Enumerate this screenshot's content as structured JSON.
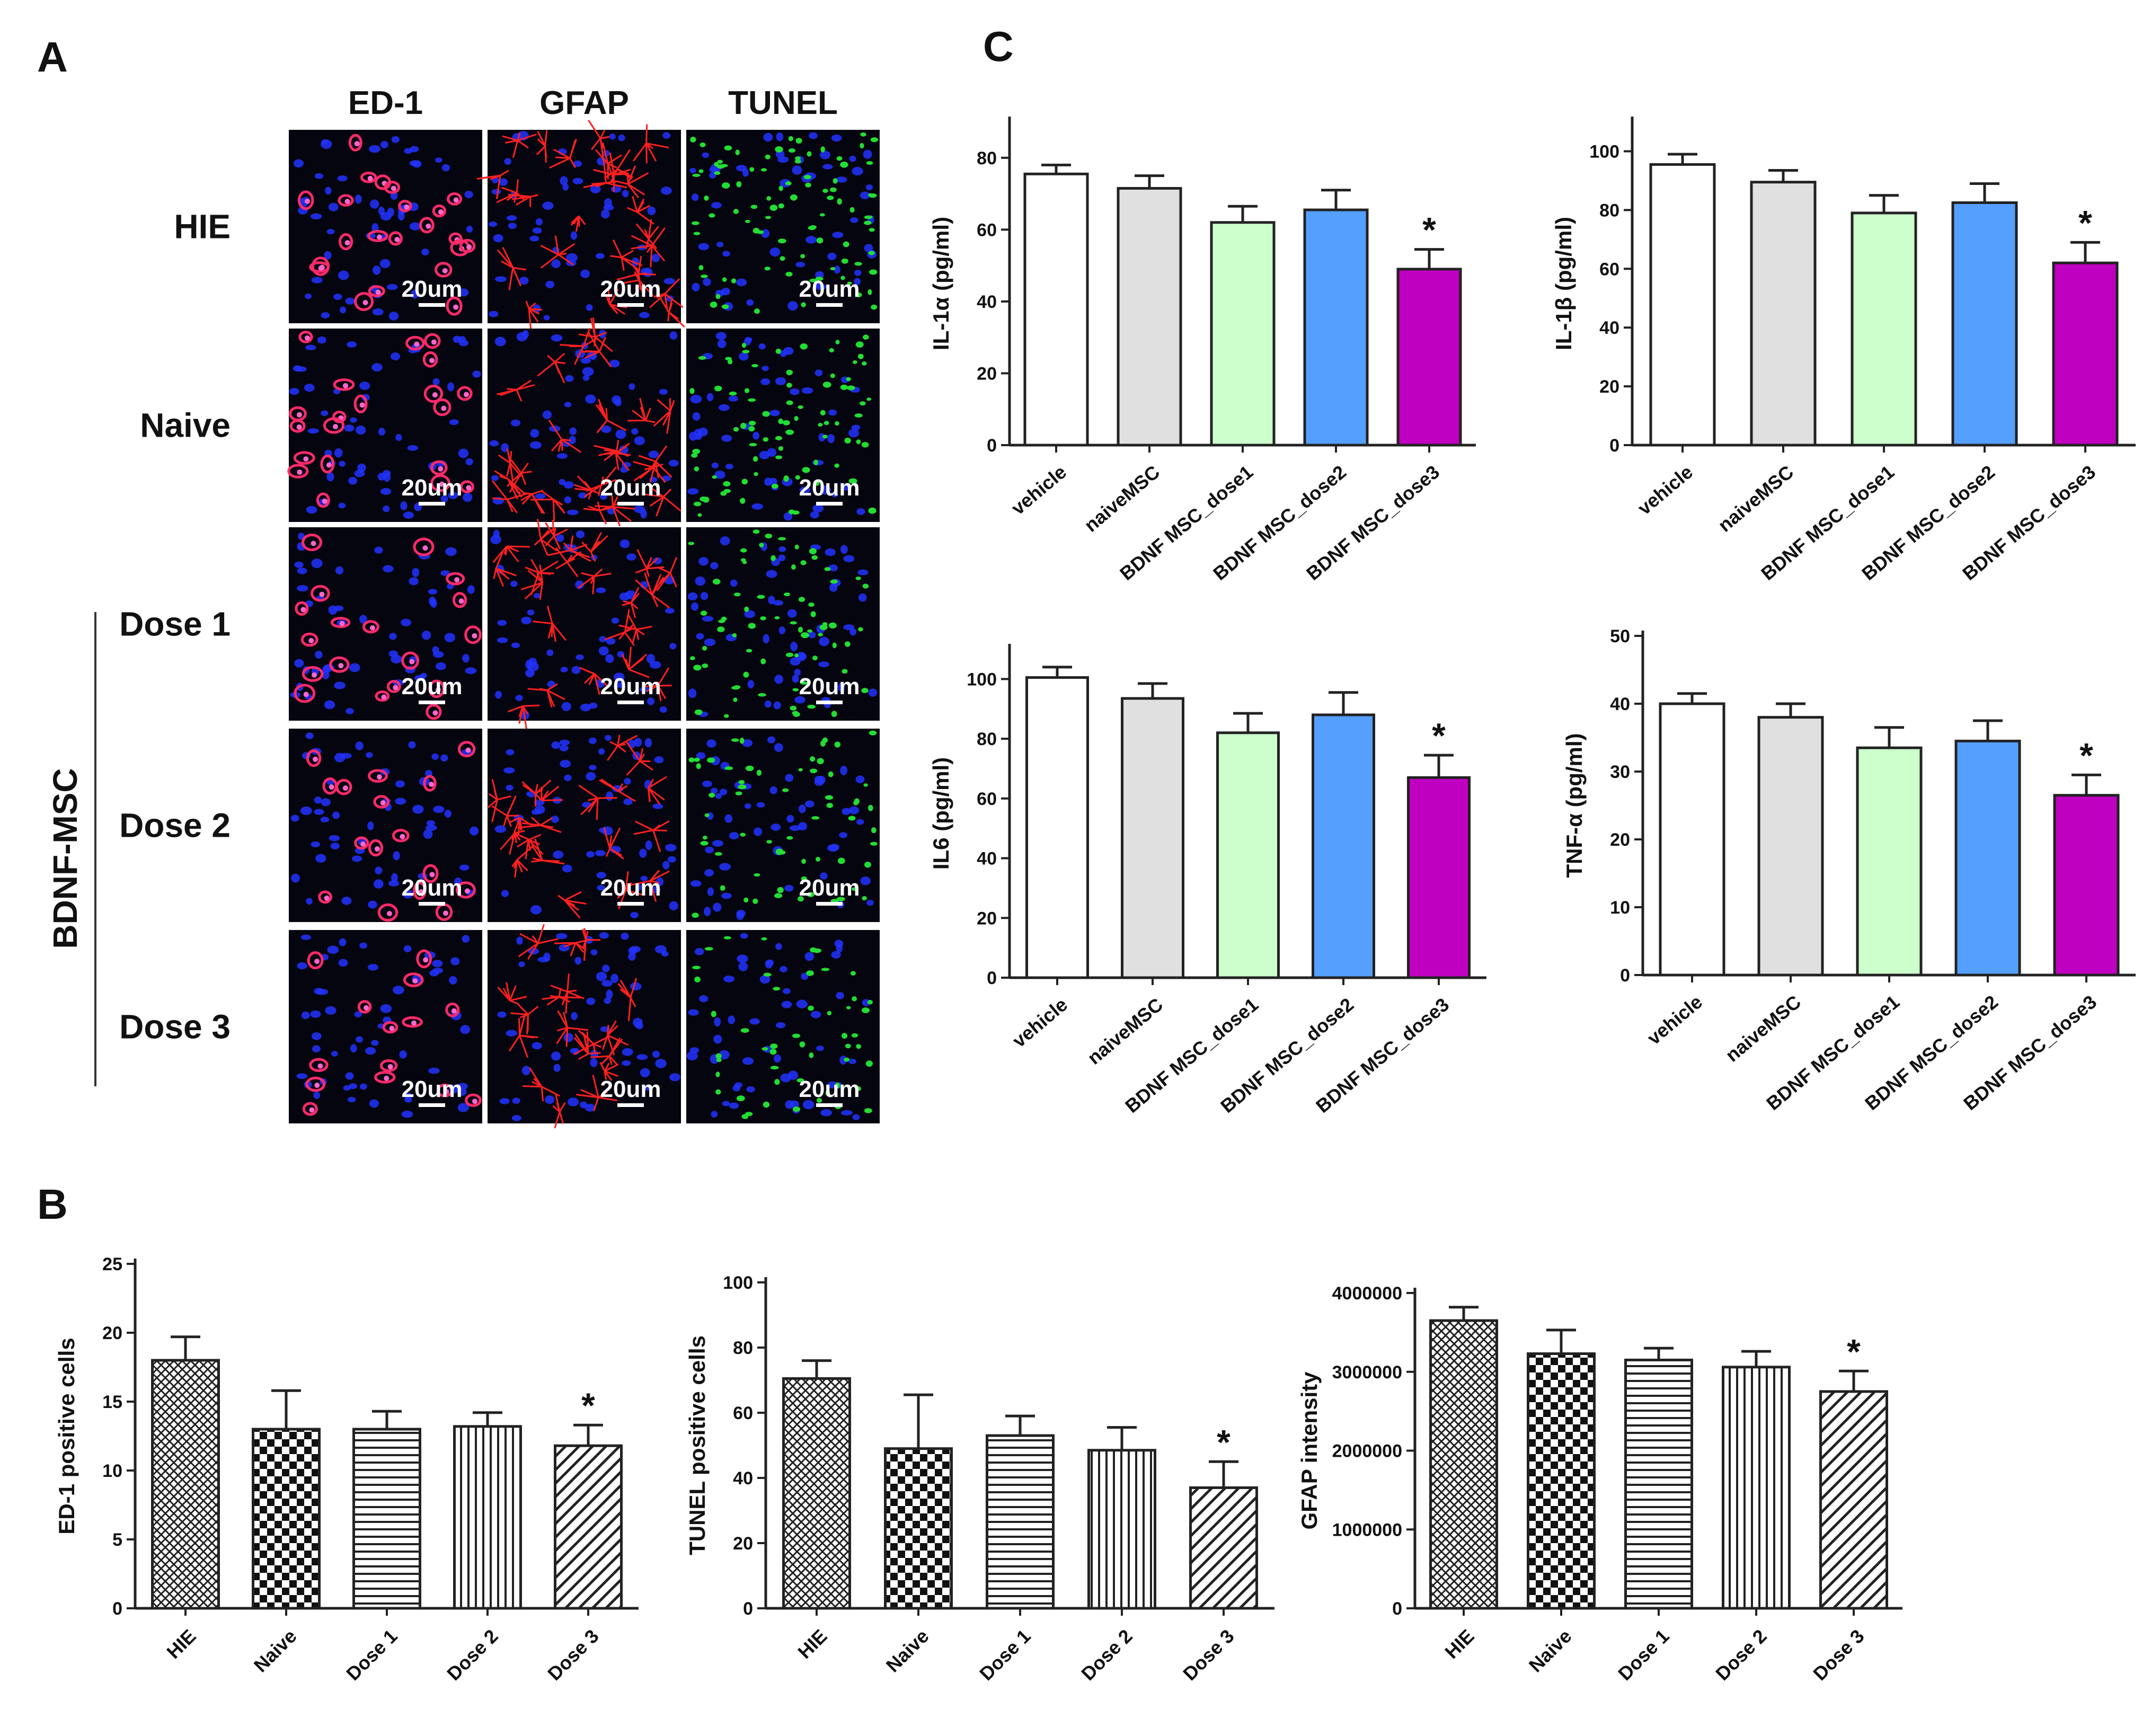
{
  "panel_labels": {
    "a": "A",
    "b": "B",
    "c": "C"
  },
  "micrograph": {
    "columns": [
      "ED-1",
      "GFAP",
      "TUNEL"
    ],
    "rows": [
      "HIE",
      "Naive",
      "Dose 1",
      "Dose 2",
      "Dose 3"
    ],
    "group_label": "BDNF-MSC",
    "scale_bar": "20um",
    "colors": {
      "nuclei": "#2233ff",
      "ed1": "#ff2a6a",
      "gfap": "#ff2020",
      "tunel": "#22dd33",
      "background": "#050510"
    }
  },
  "chart_data": [
    {
      "type": "bar",
      "panel": "C",
      "categories": [
        "vehicle",
        "naiveMSC",
        "BDNF MSC_dose1",
        "BDNF MSC_dose2",
        "BDNF MSC_dose3"
      ],
      "values": [
        75.5,
        71.5,
        62,
        65.5,
        49
      ],
      "errors": [
        2.5,
        3.5,
        4.5,
        5.5,
        5.5
      ],
      "colors": [
        "#ffffff",
        "#e0e0e0",
        "#ccffcc",
        "#55a0ff",
        "#c000c0"
      ],
      "significance": [
        "",
        "",
        "",
        "",
        "*"
      ],
      "ylabel": "IL-1α  (pg/ml)",
      "ylim": [
        0,
        90
      ],
      "yticks": [
        0,
        20,
        40,
        60,
        80
      ]
    },
    {
      "type": "bar",
      "panel": "C",
      "categories": [
        "vehicle",
        "naiveMSC",
        "BDNF MSC_dose1",
        "BDNF MSC_dose2",
        "BDNF MSC_dose3"
      ],
      "values": [
        95.5,
        89.5,
        79,
        82.5,
        62
      ],
      "errors": [
        3.5,
        4,
        6,
        6.5,
        7
      ],
      "colors": [
        "#ffffff",
        "#e0e0e0",
        "#ccffcc",
        "#55a0ff",
        "#c000c0"
      ],
      "significance": [
        "",
        "",
        "",
        "",
        "*"
      ],
      "ylabel": "IL-1β  (pg/ml)",
      "ylim": [
        0,
        110
      ],
      "yticks": [
        0,
        20,
        40,
        60,
        80,
        100
      ]
    },
    {
      "type": "bar",
      "panel": "C",
      "categories": [
        "vehicle",
        "naiveMSC",
        "BDNF MSC_dose1",
        "BDNF MSC_dose2",
        "BDNF MSC_dose3"
      ],
      "values": [
        100.5,
        93.5,
        82,
        88,
        67
      ],
      "errors": [
        3.5,
        5,
        6.5,
        7.5,
        7.5
      ],
      "colors": [
        "#ffffff",
        "#e0e0e0",
        "#ccffcc",
        "#55a0ff",
        "#c000c0"
      ],
      "significance": [
        "",
        "",
        "",
        "",
        "*"
      ],
      "ylabel": "IL6 (pg/ml)",
      "ylim": [
        0,
        110
      ],
      "yticks": [
        0,
        20,
        40,
        60,
        80,
        100
      ]
    },
    {
      "type": "bar",
      "panel": "C",
      "categories": [
        "vehicle",
        "naiveMSC",
        "BDNF MSC_dose1",
        "BDNF MSC_dose2",
        "BDNF MSC_dose3"
      ],
      "values": [
        40,
        38,
        33.5,
        34.5,
        26.5
      ],
      "errors": [
        1.5,
        2,
        3,
        3,
        3
      ],
      "colors": [
        "#ffffff",
        "#e0e0e0",
        "#ccffcc",
        "#55a0ff",
        "#c000c0"
      ],
      "significance": [
        "",
        "",
        "",
        "",
        "*"
      ],
      "ylabel": "TNF-α  (pg/ml)",
      "ylim": [
        0,
        50
      ],
      "yticks": [
        0,
        10,
        20,
        30,
        40,
        50
      ]
    },
    {
      "type": "bar",
      "panel": "B",
      "categories": [
        "HIE",
        "Naive",
        "Dose 1",
        "Dose 2",
        "Dose 3"
      ],
      "values": [
        18,
        13,
        13,
        13.2,
        11.8
      ],
      "errors": [
        1.7,
        2.8,
        1.3,
        1,
        1.5
      ],
      "patterns": [
        "crosshatch",
        "checker",
        "hlines",
        "vlines",
        "diag"
      ],
      "significance": [
        "",
        "",
        "",
        "",
        "*"
      ],
      "ylabel": "ED-1 positive cells",
      "ylim": [
        0,
        25
      ],
      "yticks": [
        0,
        5,
        10,
        15,
        20,
        25
      ]
    },
    {
      "type": "bar",
      "panel": "B",
      "categories": [
        "HIE",
        "Naive",
        "Dose 1",
        "Dose 2",
        "Dose 3"
      ],
      "values": [
        70.5,
        49,
        53,
        48.5,
        37
      ],
      "errors": [
        5.5,
        16.5,
        6,
        7,
        8
      ],
      "patterns": [
        "crosshatch",
        "checker",
        "hlines",
        "vlines",
        "diag"
      ],
      "significance": [
        "",
        "",
        "",
        "",
        "*"
      ],
      "ylabel": "TUNEL positive cells",
      "ylim": [
        0,
        100
      ],
      "yticks": [
        0,
        20,
        40,
        60,
        80,
        100
      ]
    },
    {
      "type": "bar",
      "panel": "B",
      "categories": [
        "HIE",
        "Naive",
        "Dose 1",
        "Dose 2",
        "Dose 3"
      ],
      "values": [
        3650000,
        3230000,
        3150000,
        3060000,
        2750000
      ],
      "errors": [
        170000,
        300000,
        150000,
        200000,
        260000
      ],
      "patterns": [
        "crosshatch",
        "checker",
        "hlines",
        "vlines",
        "diag"
      ],
      "significance": [
        "",
        "",
        "",
        "",
        "*"
      ],
      "ylabel": "GFAP intensity",
      "ylim": [
        0,
        4000000
      ],
      "yticks": [
        0,
        1000000,
        2000000,
        3000000,
        4000000
      ]
    }
  ]
}
